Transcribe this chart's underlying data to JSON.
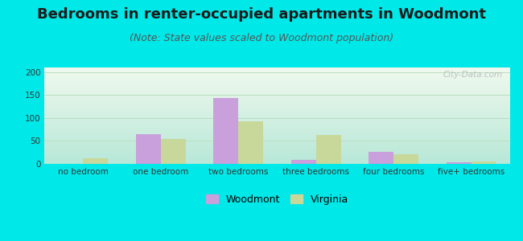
{
  "title": "Bedrooms in renter-occupied apartments in Woodmont",
  "subtitle": "(Note: State values scaled to Woodmont population)",
  "categories": [
    "no bedroom",
    "one bedroom",
    "two bedrooms",
    "three bedrooms",
    "four bedrooms",
    "five+ bedrooms"
  ],
  "woodmont_values": [
    0,
    65,
    143,
    8,
    27,
    4
  ],
  "virginia_values": [
    13,
    54,
    92,
    63,
    21,
    5
  ],
  "woodmont_color": "#c9a0dc",
  "virginia_color": "#c8d89a",
  "ylim": [
    0,
    210
  ],
  "yticks": [
    0,
    50,
    100,
    150,
    200
  ],
  "background_color": "#00e8e8",
  "plot_bg_top_left": "#f0f9ee",
  "plot_bg_bottom_right": "#b8e8d8",
  "grid_color": "#bbddc0",
  "bar_width": 0.32,
  "title_fontsize": 13,
  "subtitle_fontsize": 9,
  "tick_fontsize": 7.5,
  "legend_fontsize": 9
}
